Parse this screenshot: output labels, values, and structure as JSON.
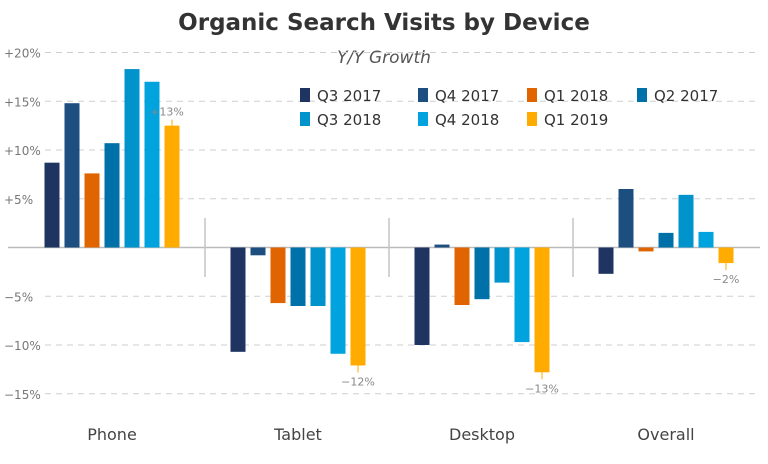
{
  "chart_data": {
    "type": "bar",
    "title": "Organic Search Visits by Device",
    "subtitle": "Y/Y Growth",
    "xlabel": "",
    "ylabel": "",
    "ylim": [
      -15,
      20
    ],
    "yticks": [
      20,
      15,
      10,
      5,
      0,
      -5,
      -10,
      -15
    ],
    "ytick_labels": [
      "+20%",
      "+15%",
      "+10%",
      "+5%",
      "",
      "−5%",
      "−10%",
      "−15%"
    ],
    "grid": true,
    "legend_position": "top-right",
    "categories": [
      "Phone",
      "Tablet",
      "Desktop",
      "Overall"
    ],
    "series": [
      {
        "name": "Q3 2017",
        "color": "#1f3461",
        "values": [
          8.7,
          -10.7,
          -10.0,
          -2.7
        ]
      },
      {
        "name": "Q4 2017",
        "color": "#1d4e80",
        "values": [
          14.8,
          -0.8,
          0.3,
          6.0
        ]
      },
      {
        "name": "Q1 2018",
        "color": "#e06400",
        "values": [
          7.6,
          -5.7,
          -5.9,
          -0.4
        ]
      },
      {
        "name": "Q2 2017",
        "color": "#0070a8",
        "values": [
          10.7,
          -6.0,
          -5.3,
          1.5
        ]
      },
      {
        "name": "Q3 2018",
        "color": "#0093cc",
        "values": [
          18.3,
          -6.0,
          -3.6,
          5.4
        ]
      },
      {
        "name": "Q4 2018",
        "color": "#00a3de",
        "values": [
          17.0,
          -10.9,
          -9.7,
          1.6
        ]
      },
      {
        "name": "Q1 2019",
        "color": "#ffab00",
        "values": [
          12.5,
          -12.1,
          -12.8,
          -1.6
        ]
      }
    ],
    "annotations": [
      {
        "category": "Phone",
        "series": "Q1 2019",
        "text": "+13%"
      },
      {
        "category": "Tablet",
        "series": "Q1 2019",
        "text": "−12%"
      },
      {
        "category": "Desktop",
        "series": "Q1 2019",
        "text": "−13%"
      },
      {
        "category": "Overall",
        "series": "Q1 2019",
        "text": "−2%"
      }
    ]
  }
}
